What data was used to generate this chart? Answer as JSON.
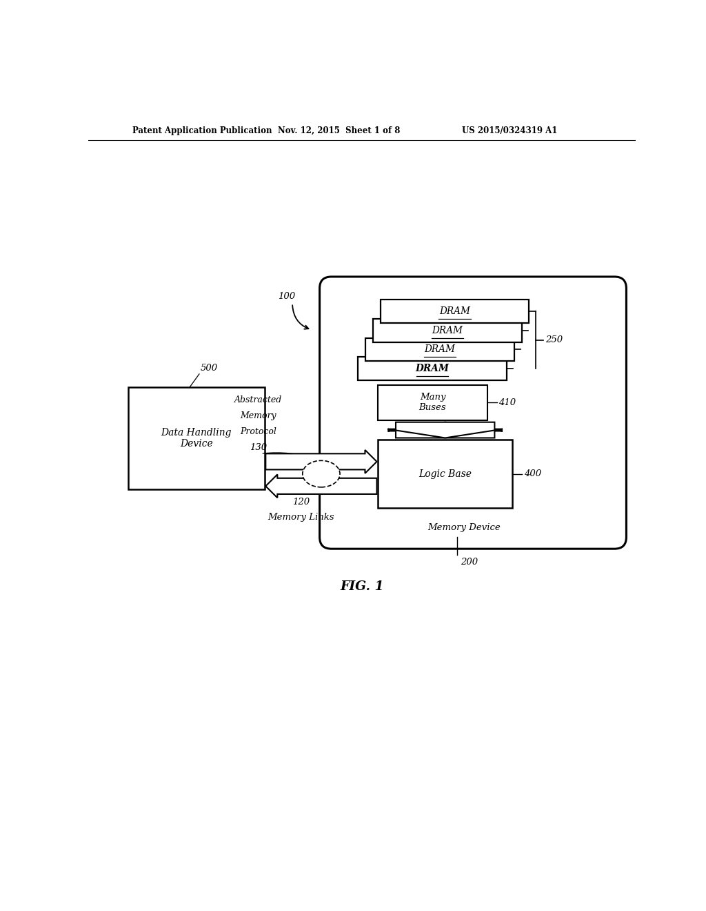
{
  "bg_color": "#ffffff",
  "header_left": "Patent Application Publication",
  "header_mid": "Nov. 12, 2015  Sheet 1 of 8",
  "header_right": "US 2015/0324319 A1",
  "fig_label": "FIG. 1",
  "label_100": "100",
  "label_200": "200",
  "label_250": "250",
  "label_400": "400",
  "label_410": "410",
  "label_500": "500",
  "label_120": "120",
  "label_130": "130",
  "text_memory_links": "Memory Links",
  "text_data_handling": "Data Handling\nDevice",
  "text_logic_base": "Logic Base",
  "text_many_buses": "Many\nBuses",
  "text_memory_device": "Memory Device",
  "text_abstracted_line1": "Abstracted",
  "text_abstracted_line2": "Memory",
  "text_abstracted_line3": "Protocol",
  "dram_labels": [
    "DRAM",
    "DRAM",
    "DRAM",
    "DRAM"
  ],
  "page_width": 10.24,
  "page_height": 13.2
}
